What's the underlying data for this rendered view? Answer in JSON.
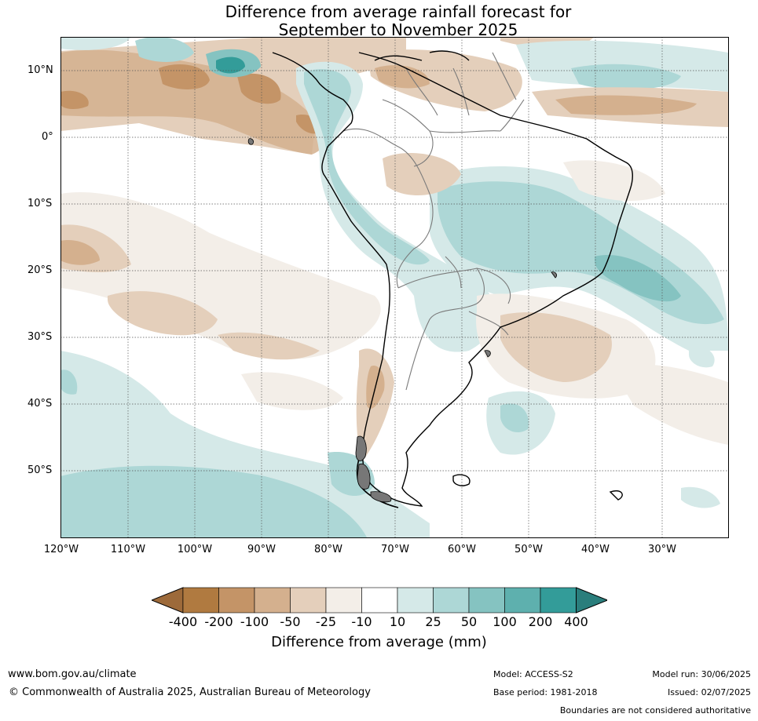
{
  "title": {
    "line1": "Difference from average rainfall forecast for",
    "line2": "September to November 2025"
  },
  "axes": {
    "lat_labels": [
      "10°N",
      "0°",
      "10°S",
      "20°S",
      "30°S",
      "40°S",
      "50°S"
    ],
    "lon_labels": [
      "120°W",
      "110°W",
      "100°W",
      "90°W",
      "80°W",
      "70°W",
      "60°W",
      "50°W",
      "40°W",
      "30°W"
    ]
  },
  "legend": {
    "label": "Difference from average (mm)",
    "ticks": [
      "-400",
      "-200",
      "-100",
      "-50",
      "-25",
      "-10",
      "10",
      "25",
      "50",
      "100",
      "200",
      "400"
    ],
    "colors": [
      "#9d6a3a",
      "#b07a40",
      "#c49467",
      "#d4b08e",
      "#e4cfbb",
      "#f3eee8",
      "#ffffff",
      "#d5e9e8",
      "#add7d6",
      "#85c3c1",
      "#5eb0ae",
      "#339c99",
      "#2a7e7c"
    ]
  },
  "footer": {
    "url": "www.bom.gov.au/climate",
    "copyright": "© Commonwealth of Australia 2025, Australian Bureau of Meteorology",
    "model": "Model: ACCESS-S2",
    "base_period": "Base period: 1981-2018",
    "model_run": "Model run: 30/06/2025",
    "issued": "Issued: 02/07/2025",
    "disclaimer": "Boundaries are not considered authoritative"
  }
}
